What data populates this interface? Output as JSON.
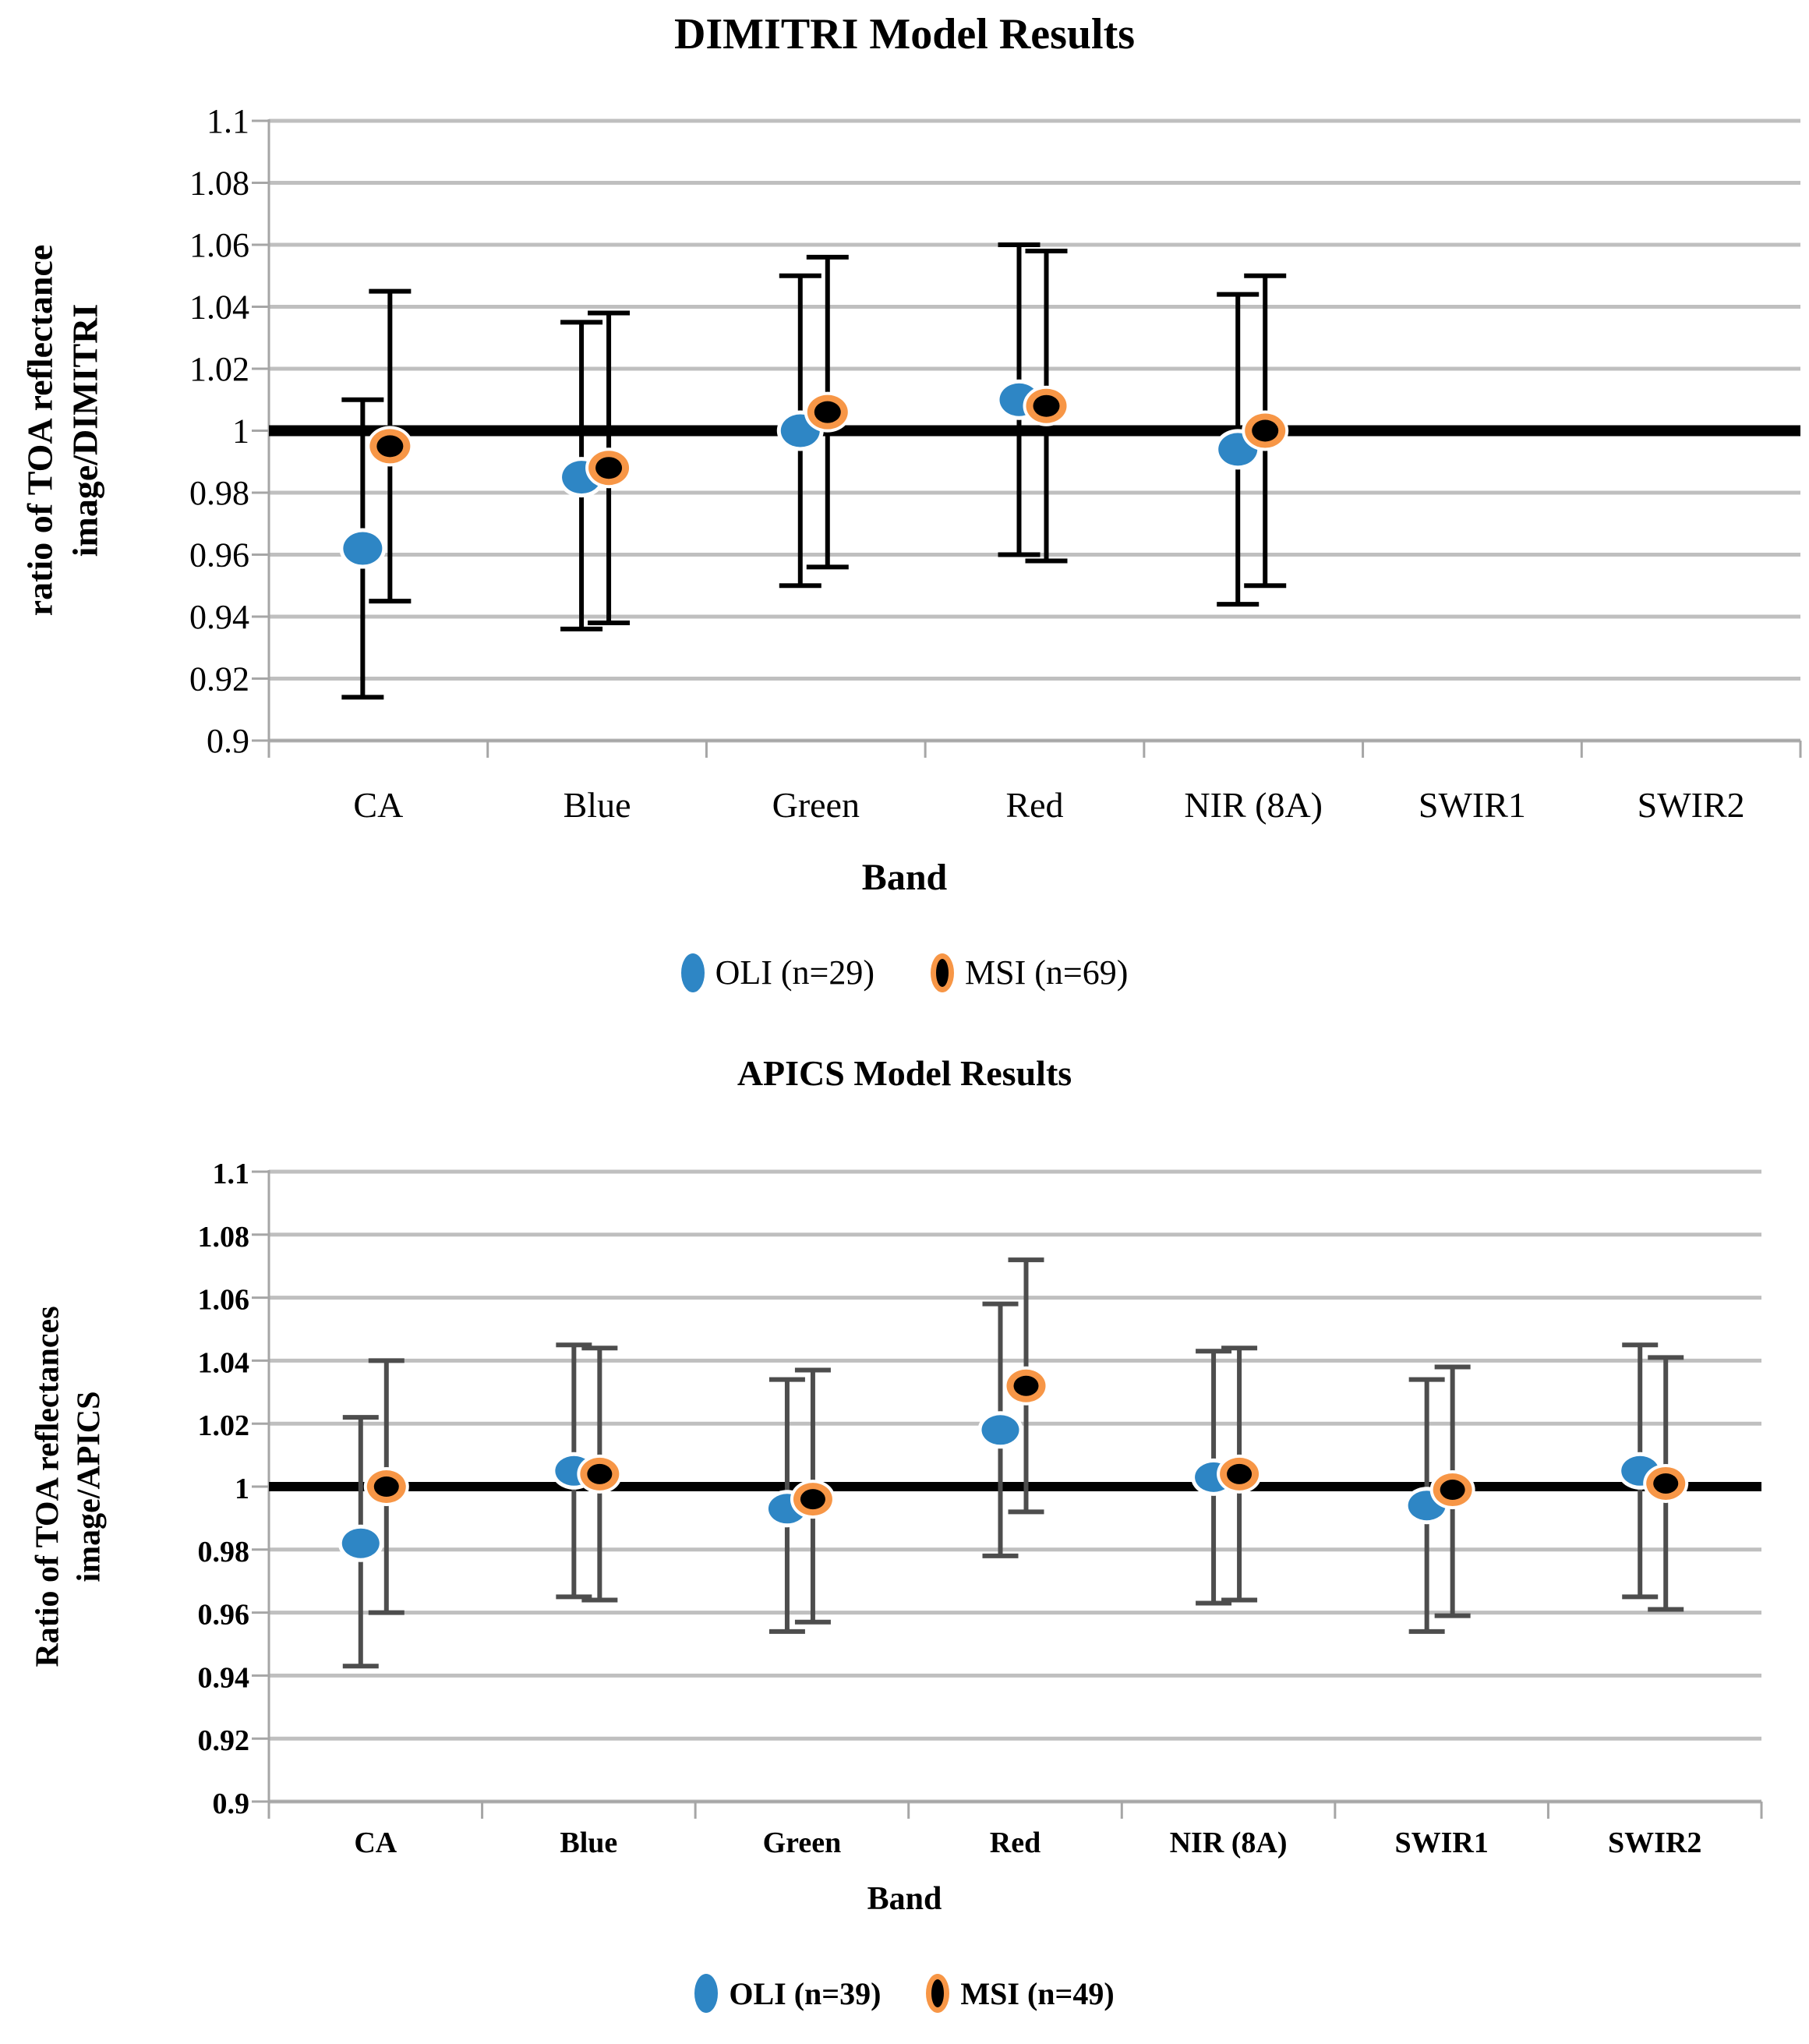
{
  "page": {
    "background": "#FFFFFF"
  },
  "colors": {
    "oli_blue": "#2E86C5",
    "msi_black": "#000000",
    "msi_orange_outline": "#F79646",
    "gridline": "#BFBFBF",
    "axis": "#A6A6A6",
    "reference_line": "#000000"
  },
  "chart_data": [
    {
      "type": "scatter",
      "title": "DIMITRI Model Results",
      "xlabel": "Band",
      "ylabel": "ratio of TOA reflectance image/DIMITRI",
      "ylabel_lines": [
        "ratio of TOA reflectance",
        "image/DIMITRI"
      ],
      "categories": [
        "CA",
        "Blue",
        "Green",
        "Red",
        "NIR (8A)",
        "SWIR1",
        "SWIR2"
      ],
      "ylim": [
        0.9,
        1.1
      ],
      "ytick_values": [
        1.1,
        1.08,
        1.06,
        1.04,
        1.02,
        1.0,
        0.98,
        0.96,
        0.94,
        0.92,
        0.9
      ],
      "ytick_labels": [
        "1.1",
        "1.08",
        "1.06",
        "1.04",
        "1.02",
        "1",
        "0.98",
        "0.96",
        "0.94",
        "0.92",
        "0.9"
      ],
      "grid": true,
      "reference_line": 1.0,
      "legend_position": "bottom",
      "error_bar_color": "#000000",
      "series": [
        {
          "name": "OLI (n=29)",
          "color": "#2E86C5",
          "values": [
            0.962,
            0.985,
            1.0,
            1.01,
            0.994,
            null,
            null
          ],
          "err_low": [
            0.914,
            0.936,
            0.95,
            0.96,
            0.944,
            null,
            null
          ],
          "err_high": [
            1.01,
            1.035,
            1.05,
            1.06,
            1.044,
            null,
            null
          ]
        },
        {
          "name": "MSI (n=69)",
          "color": "#000000",
          "outline": "#F79646",
          "values": [
            0.995,
            0.988,
            1.006,
            1.008,
            1.0,
            null,
            null
          ],
          "err_low": [
            0.945,
            0.938,
            0.956,
            0.958,
            0.95,
            null,
            null
          ],
          "err_high": [
            1.045,
            1.038,
            1.056,
            1.058,
            1.05,
            null,
            null
          ]
        }
      ]
    },
    {
      "type": "scatter",
      "title": "APICS Model Results",
      "xlabel": "Band",
      "ylabel": "Ratio of TOA reflectances image/APICS",
      "ylabel_lines": [
        "Ratio of TOA reflectances",
        "image/APICS"
      ],
      "categories": [
        "CA",
        "Blue",
        "Green",
        "Red",
        "NIR (8A)",
        "SWIR1",
        "SWIR2"
      ],
      "ylim": [
        0.9,
        1.1
      ],
      "ytick_values": [
        1.1,
        1.08,
        1.06,
        1.04,
        1.02,
        1.0,
        0.98,
        0.96,
        0.94,
        0.92,
        0.9
      ],
      "ytick_labels": [
        "1.1",
        "1.08",
        "1.06",
        "1.04",
        "1.02",
        "1",
        "0.98",
        "0.96",
        "0.94",
        "0.92",
        "0.9"
      ],
      "grid": true,
      "reference_line": 1.0,
      "legend_position": "bottom",
      "error_bar_color": "#4D4D4D",
      "series": [
        {
          "name": "OLI (n=39)",
          "color": "#2E86C5",
          "values": [
            0.982,
            1.005,
            0.993,
            1.018,
            1.003,
            0.994,
            1.005
          ],
          "err_low": [
            0.943,
            0.965,
            0.954,
            0.978,
            0.963,
            0.954,
            0.965
          ],
          "err_high": [
            1.022,
            1.045,
            1.034,
            1.058,
            1.043,
            1.034,
            1.045
          ]
        },
        {
          "name": "MSI (n=49)",
          "color": "#000000",
          "outline": "#F79646",
          "values": [
            1.0,
            1.004,
            0.996,
            1.032,
            1.004,
            0.999,
            1.001
          ],
          "err_low": [
            0.96,
            0.964,
            0.957,
            0.992,
            0.964,
            0.959,
            0.961
          ],
          "err_high": [
            1.04,
            1.044,
            1.037,
            1.072,
            1.044,
            1.038,
            1.041
          ]
        }
      ]
    }
  ]
}
